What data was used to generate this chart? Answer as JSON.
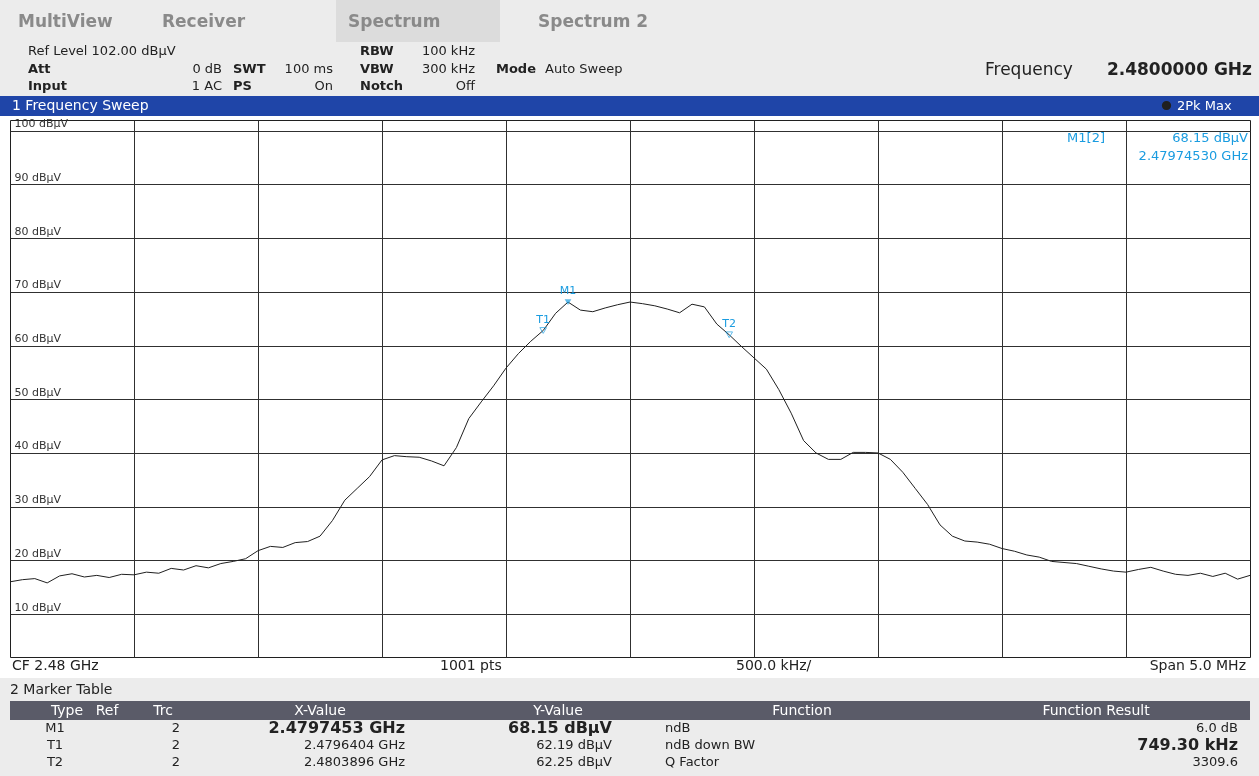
{
  "chart_data": {
    "type": "line",
    "title": "1 Frequency Sweep",
    "categories": [
      null,
      null,
      null,
      null,
      null,
      null,
      null,
      null,
      null,
      null,
      null,
      null,
      null,
      null,
      null,
      null,
      null,
      null,
      null,
      null,
      null,
      null,
      null,
      null,
      null,
      null,
      null,
      null,
      null,
      null,
      null,
      null,
      null,
      null,
      null,
      null,
      null,
      null,
      null,
      null,
      null,
      null,
      null,
      null,
      null,
      null,
      null,
      null,
      null,
      null,
      null,
      null,
      null,
      null,
      null,
      null,
      null,
      null,
      null,
      null,
      null,
      null,
      null,
      null,
      null,
      null,
      null,
      null,
      null,
      null,
      null,
      null,
      null,
      null,
      null,
      null,
      null,
      null,
      null,
      null,
      null,
      null,
      null,
      null,
      null,
      null,
      null,
      null,
      null,
      null,
      null,
      null,
      null,
      null,
      null,
      null,
      null,
      null,
      null,
      null,
      null
    ],
    "series": [
      {
        "name": "2Pk Max",
        "color": "#202020",
        "values": [
          16.0,
          16.4,
          16.6,
          15.8,
          17.1,
          17.5,
          16.9,
          17.2,
          16.8,
          17.4,
          17.3,
          17.8,
          17.6,
          18.5,
          18.2,
          19.0,
          18.6,
          19.4,
          19.8,
          20.3,
          21.8,
          22.6,
          22.4,
          23.3,
          23.5,
          24.5,
          27.4,
          31.2,
          33.4,
          35.6,
          38.7,
          39.5,
          39.3,
          39.2,
          38.5,
          37.6,
          41.0,
          46.4,
          49.5,
          52.5,
          55.8,
          58.5,
          60.8,
          62.8,
          66.0,
          68.1,
          66.6,
          66.3,
          67.0,
          67.6,
          68.1,
          67.8,
          67.4,
          66.8,
          66.1,
          67.7,
          67.2,
          64.0,
          62.0,
          59.8,
          57.7,
          55.6,
          51.8,
          47.4,
          42.3,
          40.0,
          38.8,
          38.8,
          40.1,
          40.1,
          40.0,
          38.8,
          36.4,
          33.4,
          30.4,
          26.6,
          24.5,
          23.6,
          23.4,
          23.0,
          22.2,
          21.7,
          21.0,
          20.6,
          19.8,
          19.6,
          19.4,
          18.9,
          18.4,
          18.0,
          17.8,
          18.3,
          18.7,
          18.0,
          17.4,
          17.2,
          17.6,
          17.0,
          17.6,
          16.5,
          17.2
        ],
        "value_labels": [
          null,
          null,
          null,
          null,
          null,
          null,
          null,
          null,
          null,
          null,
          null,
          null,
          null,
          null,
          null,
          null,
          null,
          null,
          null,
          null,
          null,
          null,
          null,
          null,
          null,
          null,
          null,
          null,
          null,
          null,
          null,
          null,
          null,
          null,
          null,
          null,
          null,
          null,
          null,
          null,
          null,
          null,
          null,
          "T1",
          null,
          "M1",
          null,
          null,
          null,
          null,
          null,
          null,
          null,
          null,
          null,
          null,
          null,
          null,
          "T2",
          null,
          null,
          null,
          null,
          null,
          null,
          null,
          null,
          null,
          null,
          null,
          null,
          null,
          null,
          null,
          null,
          null,
          null,
          null,
          null,
          null,
          null,
          null,
          null,
          null,
          null,
          null,
          null,
          null,
          null,
          null,
          null,
          null,
          null,
          null,
          null,
          null,
          null,
          null,
          null,
          null,
          null
        ]
      }
    ],
    "ylim": [
      2,
      102
    ],
    "yticks": [
      {
        "value": 10,
        "label": "10 dBµV"
      },
      {
        "value": 20,
        "label": "20 dBµV"
      },
      {
        "value": 30,
        "label": "30 dBµV"
      },
      {
        "value": 40,
        "label": "40 dBµV"
      },
      {
        "value": 50,
        "label": "50 dBµV"
      },
      {
        "value": 60,
        "label": "60 dBµV"
      },
      {
        "value": 70,
        "label": "70 dBµV"
      },
      {
        "value": 80,
        "label": "80 dBµV"
      },
      {
        "value": 90,
        "label": "90 dBµV"
      },
      {
        "value": 100,
        "label": "100 dBµV"
      }
    ],
    "grid": true,
    "legend": "top right",
    "marker": "none",
    "line_style": "solid",
    "annotations": [
      "MultiView",
      "Receiver",
      "Spectrum",
      "Spectrum 2",
      "Ref Level 102.00 dBµV",
      "Att",
      "0 dB",
      "SWT",
      "100 ms",
      "PS",
      "On",
      "Input",
      "1 AC",
      "RBW",
      "100 kHz",
      "VBW",
      "300 kHz",
      "Notch",
      "Off",
      "Mode",
      "Auto Sweep",
      "Frequency",
      "2.4800000 GHz",
      "M1[2]",
      "68.15 dBµV",
      "2.47974530 GHz",
      "CF 2.48 GHz",
      "1001 pts",
      "500.0 kHz/",
      "Span 5.0 MHz",
      "2 Marker Table",
      "Type",
      "Ref",
      "Trc",
      "X-Value",
      "Y-Value",
      "Function",
      "Function Result",
      "M1",
      "2",
      "2.4797453 GHz",
      "68.15 dBµV",
      "ndB",
      "6.0 dB",
      "T1",
      "2",
      "2.4796404 GHz",
      "62.19 dBµV",
      "ndB down BW",
      "749.30 kHz",
      "T2",
      "2",
      "2.4803896 GHz",
      "62.25 dBµV",
      "Q Factor",
      "3309.6"
    ]
  }
}
